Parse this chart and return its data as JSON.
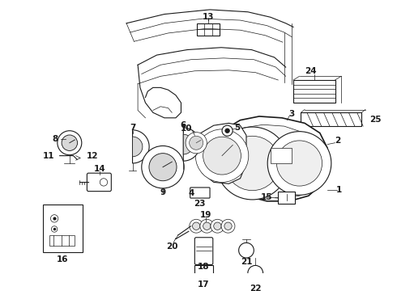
{
  "background_color": "#ffffff",
  "line_color": "#1a1a1a",
  "fig_width": 4.9,
  "fig_height": 3.6,
  "dpi": 100,
  "label_fontsize": 7.5,
  "label_fontweight": "bold"
}
